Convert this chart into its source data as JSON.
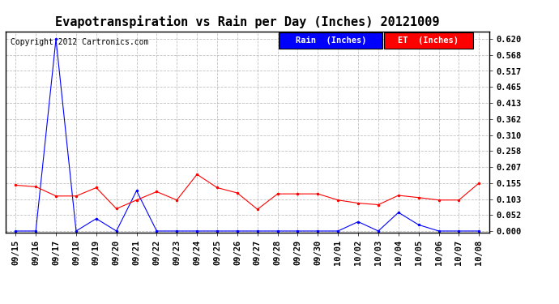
{
  "title": "Evapotranspiration vs Rain per Day (Inches) 20121009",
  "copyright_text": "Copyright 2012 Cartronics.com",
  "legend_rain": "Rain  (Inches)",
  "legend_et": "ET  (Inches)",
  "background_color": "#ffffff",
  "plot_bg_color": "#ffffff",
  "grid_color": "#bbbbbb",
  "rain_color": "#0000ff",
  "et_color": "#ff0000",
  "legend_rain_bg": "#0000ff",
  "legend_et_bg": "#ff0000",
  "x_labels": [
    "09/15",
    "09/16",
    "09/17",
    "09/18",
    "09/19",
    "09/20",
    "09/21",
    "09/22",
    "09/23",
    "09/24",
    "09/25",
    "09/26",
    "09/27",
    "09/28",
    "09/29",
    "09/30",
    "10/01",
    "10/02",
    "10/03",
    "10/04",
    "10/05",
    "10/06",
    "10/07",
    "10/08"
  ],
  "rain_values": [
    0.0,
    0.0,
    0.62,
    0.0,
    0.04,
    0.0,
    0.13,
    0.0,
    0.0,
    0.0,
    0.0,
    0.0,
    0.0,
    0.0,
    0.0,
    0.0,
    0.0,
    0.03,
    0.0,
    0.06,
    0.02,
    0.0,
    0.0,
    0.0
  ],
  "et_values": [
    0.148,
    0.143,
    0.113,
    0.113,
    0.14,
    0.072,
    0.1,
    0.127,
    0.1,
    0.183,
    0.14,
    0.123,
    0.07,
    0.12,
    0.12,
    0.12,
    0.1,
    0.09,
    0.085,
    0.115,
    0.108,
    0.1,
    0.1,
    0.155
  ],
  "yticks": [
    0.0,
    0.052,
    0.103,
    0.155,
    0.207,
    0.258,
    0.31,
    0.362,
    0.413,
    0.465,
    0.517,
    0.568,
    0.62
  ],
  "ylim": [
    -0.005,
    0.643
  ],
  "title_fontsize": 11,
  "copyright_fontsize": 7,
  "tick_fontsize": 7.5,
  "legend_fontsize": 7.5
}
